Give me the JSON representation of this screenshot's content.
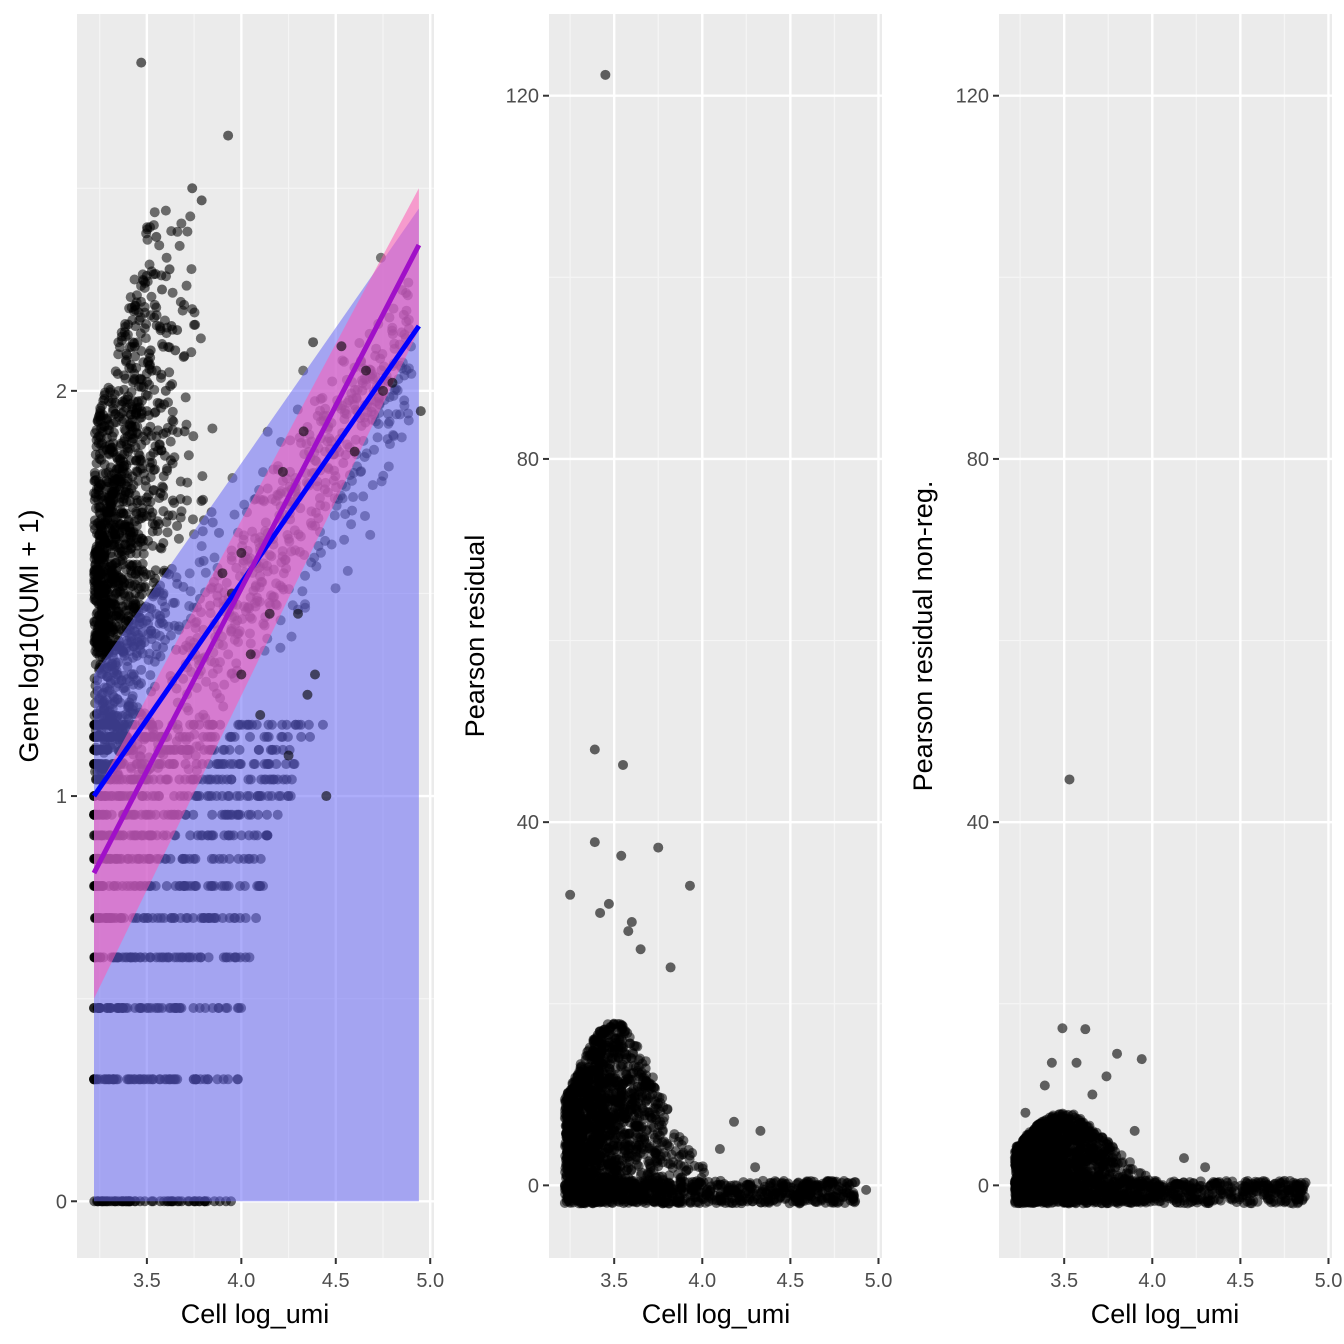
{
  "chart_data": [
    {
      "type": "scatter",
      "title": "",
      "xlabel": "Cell log_umi",
      "ylabel": "Gene log10(UMI + 1)",
      "xlim": [
        3.13,
        5.02
      ],
      "ylim": [
        -0.14,
        2.93
      ],
      "xticks": [
        3.5,
        4.0,
        4.5,
        5.0
      ],
      "xtick_labels": [
        "3.5",
        "4.0",
        "4.5",
        "5.0"
      ],
      "yticks": [
        0,
        1,
        2
      ],
      "ytick_labels": [
        "0",
        "1",
        "2"
      ],
      "grid": true,
      "legend": "none",
      "colors": {
        "points": "#000000",
        "line1": "#0000ff",
        "line2": "#a010c8",
        "band1": "#6a6af5",
        "band2": "#ff5ab4",
        "panel": "#ebebeb"
      },
      "series": [
        {
          "kind": "points",
          "x": [
            3.47,
            3.93,
            3.74,
            3.79,
            3.55,
            3.44,
            3.63,
            3.66,
            4.38,
            4.53,
            4.66,
            4.75,
            4.95,
            4.33,
            4.6,
            4.22,
            4.0,
            3.95,
            4.3,
            4.8,
            4.0,
            4.39,
            3.3,
            3.4,
            3.5,
            3.6,
            3.7,
            3.35,
            3.45,
            3.55,
            3.65,
            3.25,
            3.28,
            3.52,
            3.58,
            3.62,
            4.1,
            4.25,
            4.35,
            4.45,
            3.9,
            4.05,
            4.15
          ],
          "y": [
            2.81,
            2.63,
            2.5,
            2.47,
            2.38,
            2.2,
            2.16,
            2.15,
            2.12,
            2.11,
            2.05,
            2.0,
            1.95,
            1.9,
            1.85,
            1.8,
            1.6,
            1.5,
            1.45,
            2.02,
            1.3,
            1.3,
            1.7,
            1.85,
            1.95,
            2.0,
            1.9,
            1.6,
            1.8,
            2.05,
            2.1,
            1.5,
            1.4,
            2.1,
            2.25,
            2.3,
            1.2,
            1.1,
            1.25,
            1.0,
            1.55,
            1.35,
            1.45
          ]
        },
        {
          "kind": "fit",
          "name": "",
          "x": [
            3.22,
            4.94
          ],
          "y": [
            1.0,
            2.16
          ]
        },
        {
          "kind": "fit",
          "name": "",
          "x": [
            3.22,
            4.94
          ],
          "y": [
            0.81,
            2.36
          ]
        }
      ],
      "bands": [
        {
          "x": [
            3.22,
            4.94
          ],
          "lower": [
            0.0,
            0.0
          ],
          "upper": [
            1.3,
            2.45
          ]
        },
        {
          "x": [
            3.22,
            4.94
          ],
          "lower": [
            0.5,
            2.15
          ],
          "upper": [
            1.0,
            2.5
          ]
        }
      ]
    },
    {
      "type": "scatter",
      "title": "",
      "xlabel": "Cell log_umi",
      "ylabel": "Pearson residual",
      "xlim": [
        3.13,
        5.02
      ],
      "ylim": [
        -8.0,
        129.0
      ],
      "xticks": [
        3.5,
        4.0,
        4.5,
        5.0
      ],
      "xtick_labels": [
        "3.5",
        "4.0",
        "4.5",
        "5.0"
      ],
      "yticks": [
        0,
        40,
        80,
        120
      ],
      "ytick_labels": [
        "0",
        "40",
        "80",
        "120"
      ],
      "grid": true,
      "legend": "none",
      "series": [
        {
          "kind": "points",
          "x": [
            3.45,
            3.39,
            3.55,
            3.39,
            3.75,
            3.54,
            3.93,
            3.25,
            3.47,
            3.58,
            3.65,
            3.82,
            4.18,
            4.33,
            4.93,
            4.82,
            4.1,
            4.3,
            3.42,
            3.6
          ],
          "y": [
            122.3,
            48.0,
            46.3,
            37.8,
            37.2,
            36.3,
            33.0,
            32.0,
            31.0,
            28.0,
            26.0,
            24.0,
            7.0,
            6.0,
            -0.5,
            -0.8,
            4.0,
            2.0,
            30.0,
            29.0
          ]
        }
      ]
    },
    {
      "type": "scatter",
      "title": "",
      "xlabel": "Cell log_umi",
      "ylabel": "Pearson residual non-reg.",
      "xlim": [
        3.13,
        5.02
      ],
      "ylim": [
        -8.0,
        129.0
      ],
      "xticks": [
        3.5,
        4.0,
        4.5,
        5.0
      ],
      "xtick_labels": [
        "3.5",
        "4.0",
        "4.5",
        "5.0"
      ],
      "yticks": [
        0,
        40,
        80,
        120
      ],
      "ytick_labels": [
        "0",
        "40",
        "80",
        "120"
      ],
      "grid": true,
      "legend": "none",
      "series": [
        {
          "kind": "points",
          "x": [
            3.53,
            3.49,
            3.62,
            3.94,
            3.8,
            3.43,
            3.57,
            3.74,
            3.39,
            3.28,
            4.18,
            4.3,
            4.75,
            4.87,
            3.9,
            3.66
          ],
          "y": [
            44.7,
            17.3,
            17.2,
            13.9,
            14.5,
            13.5,
            13.5,
            12.0,
            11.0,
            8.0,
            3.0,
            2.0,
            0.5,
            0.3,
            6.0,
            10.0
          ]
        }
      ]
    }
  ]
}
